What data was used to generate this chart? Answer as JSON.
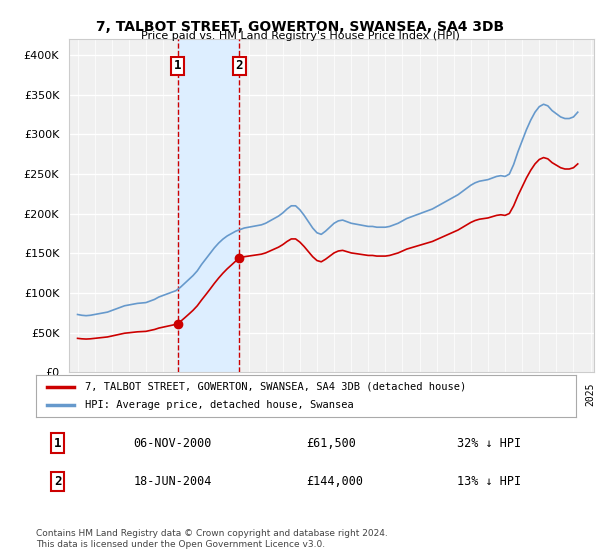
{
  "title": "7, TALBOT STREET, GOWERTON, SWANSEA, SA4 3DB",
  "subtitle": "Price paid vs. HM Land Registry's House Price Index (HPI)",
  "ylim": [
    0,
    420000
  ],
  "yticks": [
    0,
    50000,
    100000,
    150000,
    200000,
    250000,
    300000,
    350000,
    400000
  ],
  "xlabel": "",
  "background_color": "#ffffff",
  "plot_bg_color": "#f0f0f0",
  "grid_color": "#ffffff",
  "sale1_date": "2000-11-06",
  "sale1_price": 61500,
  "sale1_label": "1",
  "sale2_date": "2004-06-18",
  "sale2_price": 144000,
  "sale2_label": "2",
  "hpi_color": "#6699cc",
  "price_color": "#cc0000",
  "highlight_bg": "#ddeeff",
  "legend_house": "7, TALBOT STREET, GOWERTON, SWANSEA, SA4 3DB (detached house)",
  "legend_hpi": "HPI: Average price, detached house, Swansea",
  "table_row1": [
    "1",
    "06-NOV-2000",
    "£61,500",
    "32% ↓ HPI"
  ],
  "table_row2": [
    "2",
    "18-JUN-2004",
    "£144,000",
    "13% ↓ HPI"
  ],
  "footnote": "Contains HM Land Registry data © Crown copyright and database right 2024.\nThis data is licensed under the Open Government Licence v3.0.",
  "hpi_data": {
    "dates": [
      1995.0,
      1995.25,
      1995.5,
      1995.75,
      1996.0,
      1996.25,
      1996.5,
      1996.75,
      1997.0,
      1997.25,
      1997.5,
      1997.75,
      1998.0,
      1998.25,
      1998.5,
      1998.75,
      1999.0,
      1999.25,
      1999.5,
      1999.75,
      2000.0,
      2000.25,
      2000.5,
      2000.75,
      2001.0,
      2001.25,
      2001.5,
      2001.75,
      2002.0,
      2002.25,
      2002.5,
      2002.75,
      2003.0,
      2003.25,
      2003.5,
      2003.75,
      2004.0,
      2004.25,
      2004.5,
      2004.75,
      2005.0,
      2005.25,
      2005.5,
      2005.75,
      2006.0,
      2006.25,
      2006.5,
      2006.75,
      2007.0,
      2007.25,
      2007.5,
      2007.75,
      2008.0,
      2008.25,
      2008.5,
      2008.75,
      2009.0,
      2009.25,
      2009.5,
      2009.75,
      2010.0,
      2010.25,
      2010.5,
      2010.75,
      2011.0,
      2011.25,
      2011.5,
      2011.75,
      2012.0,
      2012.25,
      2012.5,
      2012.75,
      2013.0,
      2013.25,
      2013.5,
      2013.75,
      2014.0,
      2014.25,
      2014.5,
      2014.75,
      2015.0,
      2015.25,
      2015.5,
      2015.75,
      2016.0,
      2016.25,
      2016.5,
      2016.75,
      2017.0,
      2017.25,
      2017.5,
      2017.75,
      2018.0,
      2018.25,
      2018.5,
      2018.75,
      2019.0,
      2019.25,
      2019.5,
      2019.75,
      2020.0,
      2020.25,
      2020.5,
      2020.75,
      2021.0,
      2021.25,
      2021.5,
      2021.75,
      2022.0,
      2022.25,
      2022.5,
      2022.75,
      2023.0,
      2023.25,
      2023.5,
      2023.75,
      2024.0,
      2024.25
    ],
    "values": [
      73000,
      72000,
      71500,
      72000,
      73000,
      74000,
      75000,
      76000,
      78000,
      80000,
      82000,
      84000,
      85000,
      86000,
      87000,
      87500,
      88000,
      90000,
      92000,
      95000,
      97000,
      99000,
      101000,
      103000,
      107000,
      112000,
      117000,
      122000,
      128000,
      136000,
      143000,
      150000,
      157000,
      163000,
      168000,
      172000,
      175000,
      178000,
      180000,
      182000,
      183000,
      184000,
      185000,
      186000,
      188000,
      191000,
      194000,
      197000,
      201000,
      206000,
      210000,
      210000,
      205000,
      198000,
      190000,
      182000,
      176000,
      174000,
      178000,
      183000,
      188000,
      191000,
      192000,
      190000,
      188000,
      187000,
      186000,
      185000,
      184000,
      184000,
      183000,
      183000,
      183000,
      184000,
      186000,
      188000,
      191000,
      194000,
      196000,
      198000,
      200000,
      202000,
      204000,
      206000,
      209000,
      212000,
      215000,
      218000,
      221000,
      224000,
      228000,
      232000,
      236000,
      239000,
      241000,
      242000,
      243000,
      245000,
      247000,
      248000,
      247000,
      250000,
      262000,
      278000,
      292000,
      306000,
      318000,
      328000,
      335000,
      338000,
      336000,
      330000,
      326000,
      322000,
      320000,
      320000,
      322000,
      328000
    ]
  },
  "house_price_data": {
    "dates": [
      1995.0,
      1995.25,
      1995.5,
      1995.75,
      1996.0,
      1996.25,
      1996.5,
      1996.75,
      1997.0,
      1997.25,
      1997.5,
      1997.75,
      1998.0,
      1998.25,
      1998.5,
      1998.75,
      1999.0,
      1999.25,
      1999.5,
      1999.75,
      2000.0,
      2000.25,
      2000.5,
      2000.75,
      2001.0,
      2001.25,
      2001.5,
      2001.75,
      2002.0,
      2002.25,
      2002.5,
      2002.75,
      2003.0,
      2003.25,
      2003.5,
      2003.75,
      2004.0,
      2004.25,
      2004.5,
      2004.75,
      2005.0,
      2005.25,
      2005.5,
      2005.75,
      2006.0,
      2006.25,
      2006.5,
      2006.75,
      2007.0,
      2007.25,
      2007.5,
      2007.75,
      2008.0,
      2008.25,
      2008.5,
      2008.75,
      2009.0,
      2009.25,
      2009.5,
      2009.75,
      2010.0,
      2010.25,
      2010.5,
      2010.75,
      2011.0,
      2011.25,
      2011.5,
      2011.75,
      2012.0,
      2012.25,
      2012.5,
      2012.75,
      2013.0,
      2013.25,
      2013.5,
      2013.75,
      2014.0,
      2014.25,
      2014.5,
      2014.75,
      2015.0,
      2015.25,
      2015.5,
      2015.75,
      2016.0,
      2016.25,
      2016.5,
      2016.75,
      2017.0,
      2017.25,
      2017.5,
      2017.75,
      2018.0,
      2018.25,
      2018.5,
      2018.75,
      2019.0,
      2019.25,
      2019.5,
      2019.75,
      2000.917,
      2004.458
    ],
    "values": [
      41000,
      40500,
      40000,
      40200,
      40500,
      41000,
      41500,
      42000,
      43000,
      44500,
      46000,
      47500,
      48000,
      48500,
      49000,
      49200,
      49500,
      50000,
      51000,
      52000,
      53000,
      54000,
      55000,
      56000,
      58000,
      61000,
      65000,
      69000,
      73000,
      79000,
      85000,
      90000,
      95000,
      100000,
      106000,
      111000,
      117000,
      124000,
      131000,
      137000,
      141000,
      144000,
      146000,
      147000,
      149000,
      153000,
      157000,
      161000,
      166000,
      171000,
      175000,
      175000,
      169000,
      162000,
      154000,
      147000,
      141000,
      139000,
      143000,
      148000,
      153000,
      156000,
      157000,
      155000,
      153000,
      152000,
      151000,
      150000,
      149000,
      149000,
      148000,
      148000,
      149000,
      150000,
      152000,
      155000,
      158000,
      161000,
      163000,
      165000,
      167000,
      169000,
      171000,
      173000,
      176000,
      179000,
      182000,
      185000,
      188000,
      191000,
      195000,
      199000,
      203000,
      206000,
      208000,
      209000,
      210000,
      212000,
      214000,
      216000,
      61500,
      144000
    ]
  }
}
